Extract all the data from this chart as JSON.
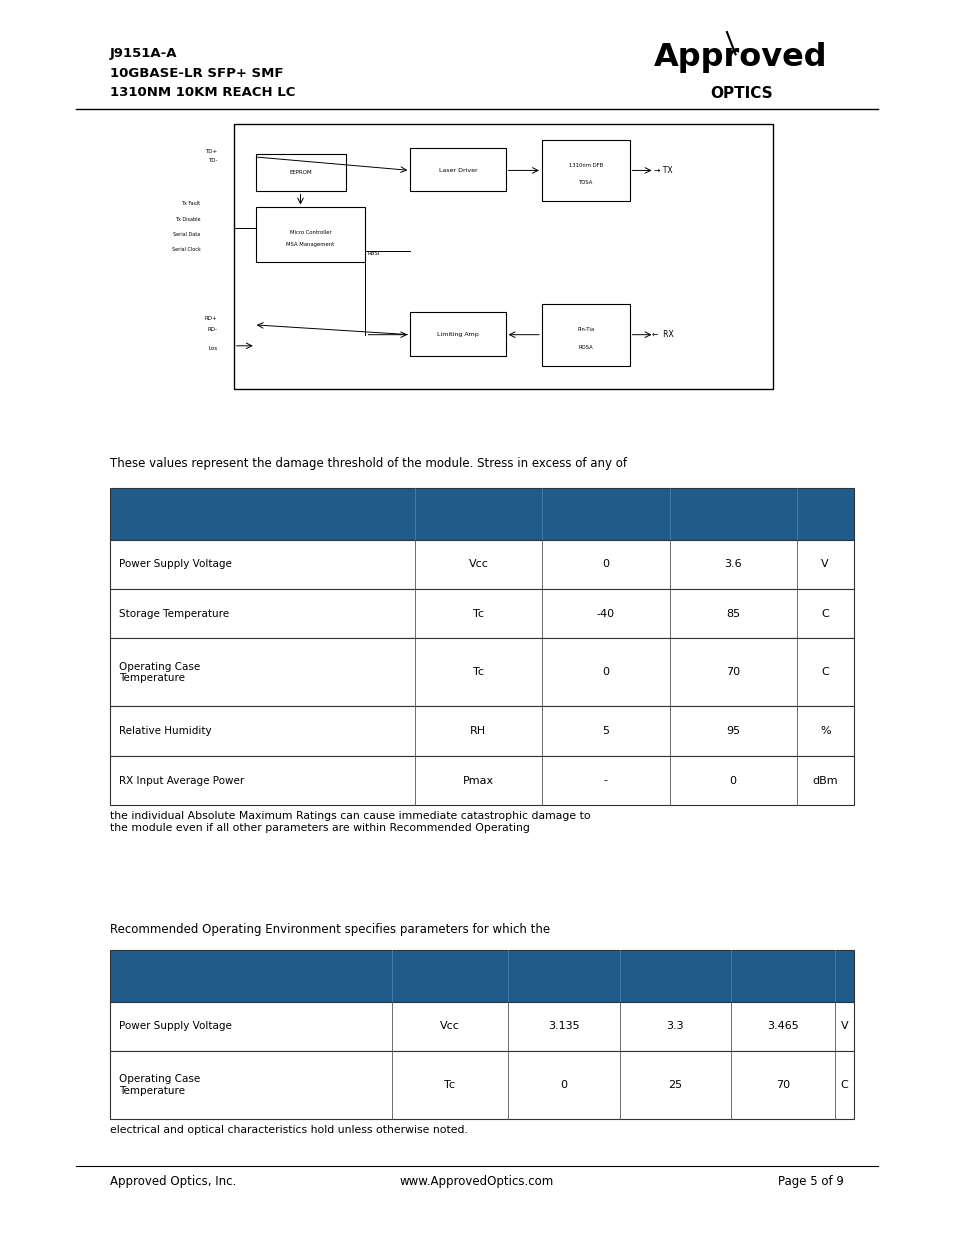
{
  "page_width": 9.54,
  "page_height": 12.35,
  "bg_color": "#ffffff",
  "header_line1": "J9151A-A",
  "header_line2": "10GBASE-LR SFP+ SMF",
  "header_line3": "1310NM 10KM REACH LC",
  "table1_intro": "These values represent the damage threshold of the module. Stress in excess of any of",
  "table1_header_color": "#1f5c8b",
  "table1_rows": [
    [
      "Power Supply Voltage",
      "Vcc",
      "0",
      "3.6",
      "V"
    ],
    [
      "Storage Temperature",
      "Tc",
      "-40",
      "85",
      "C"
    ],
    [
      "Operating Case\nTemperature",
      "Tc",
      "0",
      "70",
      "C"
    ],
    [
      "Relative Humidity",
      "RH",
      "5",
      "95",
      "%"
    ],
    [
      "RX Input Average Power",
      "Pmax",
      "-",
      "0",
      "dBm"
    ]
  ],
  "table1_note": "the individual Absolute Maximum Ratings can cause immediate catastrophic damage to\nthe module even if all other parameters are within Recommended Operating",
  "table2_intro": "Recommended Operating Environment specifies parameters for which the",
  "table2_header_color": "#1f5c8b",
  "table2_rows": [
    [
      "Power Supply Voltage",
      "Vcc",
      "3.135",
      "3.3",
      "3.465",
      "V"
    ],
    [
      "Operating Case\nTemperature",
      "Tc",
      "0",
      "25",
      "70",
      "C"
    ]
  ],
  "table2_note": "electrical and optical characteristics hold unless otherwise noted.",
  "footer_left": "Approved Optics, Inc.",
  "footer_mid": "www.ApprovedOptics.com",
  "footer_right": "Page 5 of 9"
}
